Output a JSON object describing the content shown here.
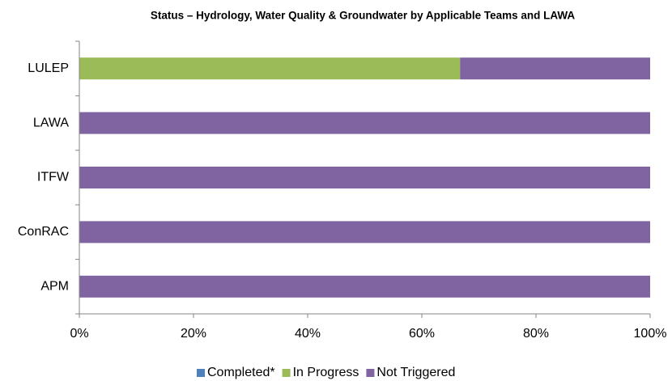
{
  "chart_data": {
    "type": "stacked-barh",
    "title": "Status – Hydrology, Water Quality & Groundwater by Applicable Teams and LAWA",
    "categories": [
      "LULEP",
      "LAWA",
      "ITFW",
      "ConRAC",
      "APM"
    ],
    "series": [
      {
        "name": "Completed*",
        "color": "#4f81bd",
        "values": [
          0,
          0,
          0,
          0,
          0
        ]
      },
      {
        "name": "In Progress",
        "color": "#9bbb59",
        "values": [
          66.7,
          0,
          0,
          0,
          0
        ]
      },
      {
        "name": "Not Triggered",
        "color": "#8064a2",
        "values": [
          33.3,
          100,
          100,
          100,
          100
        ]
      }
    ],
    "xlim": [
      0,
      100
    ],
    "xticks": [
      {
        "value": 0,
        "label": "0%"
      },
      {
        "value": 20,
        "label": "20%"
      },
      {
        "value": 40,
        "label": "40%"
      },
      {
        "value": 60,
        "label": "60%"
      },
      {
        "value": 80,
        "label": "80%"
      },
      {
        "value": 100,
        "label": "100%"
      }
    ],
    "legend": "bottom"
  }
}
